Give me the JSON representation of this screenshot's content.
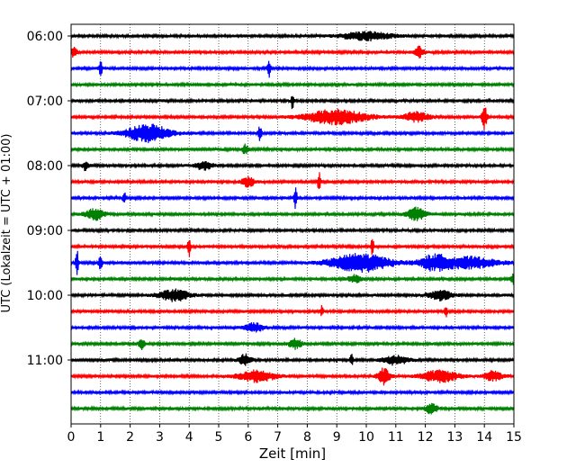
{
  "chart_data": {
    "type": "line",
    "title": "",
    "xlabel": "Zeit  [min]",
    "ylabel": "UTC (Lokalzeit = UTC + 01:00)",
    "xlim": [
      0,
      15
    ],
    "x_ticks": [
      "0",
      "1",
      "2",
      "3",
      "4",
      "5",
      "6",
      "7",
      "8",
      "9",
      "10",
      "11",
      "12",
      "13",
      "14",
      "15"
    ],
    "y_tick_labels": [
      "06:00",
      "07:00",
      "08:00",
      "09:00",
      "10:00",
      "11:00"
    ],
    "grid": "vertical-dotted",
    "series_colors": [
      "#000000",
      "#ff0000",
      "#0000ff",
      "#008000"
    ],
    "traces": [
      {
        "label": "06:00",
        "color": "#000000",
        "events": [
          {
            "t": 10.0,
            "a": 0.25,
            "w": 0.8
          }
        ]
      },
      {
        "label": "06:15",
        "color": "#ff0000",
        "events": [
          {
            "t": 0.1,
            "a": 0.3,
            "w": 0.1
          },
          {
            "t": 11.8,
            "a": 0.35,
            "w": 0.15
          }
        ]
      },
      {
        "label": "06:30",
        "color": "#0000ff",
        "events": [
          {
            "t": 1.0,
            "a": 0.6,
            "w": 0.05
          },
          {
            "t": 6.7,
            "a": 0.7,
            "w": 0.05
          }
        ]
      },
      {
        "label": "06:45",
        "color": "#008000",
        "events": []
      },
      {
        "label": "07:00",
        "color": "#000000",
        "events": [
          {
            "t": 7.5,
            "a": 0.55,
            "w": 0.05
          }
        ]
      },
      {
        "label": "07:15",
        "color": "#ff0000",
        "events": [
          {
            "t": 9.0,
            "a": 0.45,
            "w": 1.0
          },
          {
            "t": 11.7,
            "a": 0.3,
            "w": 0.4
          },
          {
            "t": 14.0,
            "a": 0.75,
            "w": 0.08
          }
        ]
      },
      {
        "label": "07:30",
        "color": "#0000ff",
        "events": [
          {
            "t": 2.6,
            "a": 0.55,
            "w": 0.7
          },
          {
            "t": 6.4,
            "a": 0.5,
            "w": 0.05
          }
        ]
      },
      {
        "label": "07:45",
        "color": "#008000",
        "events": [
          {
            "t": 5.9,
            "a": 0.3,
            "w": 0.1
          }
        ]
      },
      {
        "label": "08:00",
        "color": "#000000",
        "events": [
          {
            "t": 0.5,
            "a": 0.3,
            "w": 0.1
          },
          {
            "t": 4.5,
            "a": 0.25,
            "w": 0.3
          }
        ]
      },
      {
        "label": "08:15",
        "color": "#ff0000",
        "events": [
          {
            "t": 8.4,
            "a": 0.65,
            "w": 0.05
          },
          {
            "t": 6.0,
            "a": 0.3,
            "w": 0.2
          }
        ]
      },
      {
        "label": "08:30",
        "color": "#0000ff",
        "events": [
          {
            "t": 1.8,
            "a": 0.4,
            "w": 0.05
          },
          {
            "t": 7.6,
            "a": 0.7,
            "w": 0.05
          }
        ]
      },
      {
        "label": "08:45",
        "color": "#008000",
        "events": [
          {
            "t": 0.8,
            "a": 0.35,
            "w": 0.3
          },
          {
            "t": 11.7,
            "a": 0.4,
            "w": 0.3
          }
        ]
      },
      {
        "label": "09:00",
        "color": "#000000",
        "events": []
      },
      {
        "label": "09:15",
        "color": "#ff0000",
        "events": [
          {
            "t": 4.0,
            "a": 0.6,
            "w": 0.05
          },
          {
            "t": 10.2,
            "a": 0.55,
            "w": 0.05
          }
        ]
      },
      {
        "label": "09:30",
        "color": "#0000ff",
        "events": [
          {
            "t": 0.2,
            "a": 0.8,
            "w": 0.05
          },
          {
            "t": 1.0,
            "a": 0.6,
            "w": 0.05
          },
          {
            "t": 9.8,
            "a": 0.55,
            "w": 1.0
          },
          {
            "t": 12.3,
            "a": 0.45,
            "w": 0.5
          },
          {
            "t": 13.5,
            "a": 0.35,
            "w": 0.9
          }
        ]
      },
      {
        "label": "09:45",
        "color": "#008000",
        "events": [
          {
            "t": 9.6,
            "a": 0.25,
            "w": 0.2
          },
          {
            "t": 15.0,
            "a": 0.3,
            "w": 0.1
          }
        ]
      },
      {
        "label": "10:00",
        "color": "#000000",
        "events": [
          {
            "t": 3.5,
            "a": 0.35,
            "w": 0.5
          },
          {
            "t": 12.5,
            "a": 0.3,
            "w": 0.4
          }
        ]
      },
      {
        "label": "10:15",
        "color": "#ff0000",
        "events": [
          {
            "t": 8.5,
            "a": 0.35,
            "w": 0.05
          },
          {
            "t": 12.7,
            "a": 0.35,
            "w": 0.05
          }
        ]
      },
      {
        "label": "10:30",
        "color": "#0000ff",
        "events": [
          {
            "t": 6.2,
            "a": 0.3,
            "w": 0.3
          }
        ]
      },
      {
        "label": "10:45",
        "color": "#008000",
        "events": [
          {
            "t": 2.4,
            "a": 0.3,
            "w": 0.1
          },
          {
            "t": 7.6,
            "a": 0.3,
            "w": 0.2
          }
        ]
      },
      {
        "label": "11:00",
        "color": "#000000",
        "events": [
          {
            "t": 5.9,
            "a": 0.35,
            "w": 0.2
          },
          {
            "t": 9.5,
            "a": 0.35,
            "w": 0.05
          },
          {
            "t": 11.0,
            "a": 0.3,
            "w": 0.4
          }
        ]
      },
      {
        "label": "11:15",
        "color": "#ff0000",
        "events": [
          {
            "t": 6.3,
            "a": 0.35,
            "w": 0.6
          },
          {
            "t": 10.6,
            "a": 0.5,
            "w": 0.2
          },
          {
            "t": 12.5,
            "a": 0.35,
            "w": 0.6
          },
          {
            "t": 14.3,
            "a": 0.3,
            "w": 0.3
          }
        ]
      },
      {
        "label": "11:30",
        "color": "#0000ff",
        "events": []
      },
      {
        "label": "11:45",
        "color": "#008000",
        "events": [
          {
            "t": 12.2,
            "a": 0.3,
            "w": 0.2
          }
        ]
      }
    ]
  }
}
